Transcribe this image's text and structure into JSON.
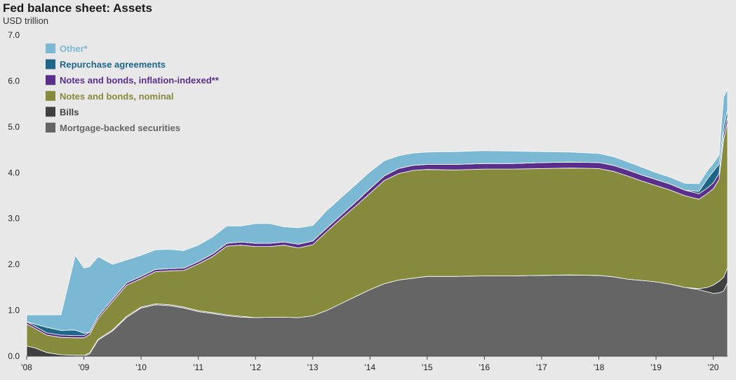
{
  "chart_data": {
    "type": "area",
    "title": "Fed balance sheet: Assets",
    "subtitle": "USD trillion",
    "stacked": true,
    "ylim": [
      0,
      7
    ],
    "yticks": [
      "0.0",
      "1.0",
      "2.0",
      "3.0",
      "4.0",
      "5.0",
      "6.0",
      "7.0"
    ],
    "xticks": [
      {
        "label": "'08",
        "x": 2008.0
      },
      {
        "label": "'09",
        "x": 2009.0
      },
      {
        "label": "'10",
        "x": 2010.0
      },
      {
        "label": "'11",
        "x": 2011.0
      },
      {
        "label": "'12",
        "x": 2012.0
      },
      {
        "label": "'13",
        "x": 2013.0
      },
      {
        "label": "'14",
        "x": 2014.0
      },
      {
        "label": "'15",
        "x": 2015.0
      },
      {
        "label": "'16",
        "x": 2016.0
      },
      {
        "label": "'17",
        "x": 2017.0
      },
      {
        "label": "'18",
        "x": 2018.0
      },
      {
        "label": "'19",
        "x": 2019.0
      },
      {
        "label": "'20",
        "x": 2020.0
      }
    ],
    "xlim": [
      2008.0,
      2020.25
    ],
    "x": [
      2008.0,
      2008.15,
      2008.35,
      2008.6,
      2008.85,
      2009.0,
      2009.1,
      2009.25,
      2009.5,
      2009.75,
      2010.0,
      2010.25,
      2010.5,
      2010.75,
      2011.0,
      2011.25,
      2011.5,
      2011.75,
      2012.0,
      2012.25,
      2012.5,
      2012.75,
      2013.0,
      2013.25,
      2013.5,
      2013.75,
      2014.0,
      2014.25,
      2014.5,
      2014.75,
      2015.0,
      2015.5,
      2016.0,
      2016.5,
      2017.0,
      2017.5,
      2018.0,
      2018.25,
      2018.5,
      2018.75,
      2019.0,
      2019.25,
      2019.5,
      2019.75,
      2019.9,
      2020.0,
      2020.1,
      2020.18,
      2020.25
    ],
    "series": [
      {
        "name": "Mortgage-backed securities",
        "color": "#656565",
        "values": [
          0,
          0,
          0,
          0,
          0,
          0,
          0.05,
          0.35,
          0.55,
          0.85,
          1.05,
          1.12,
          1.1,
          1.05,
          0.97,
          0.93,
          0.88,
          0.85,
          0.84,
          0.85,
          0.85,
          0.84,
          0.88,
          1.0,
          1.15,
          1.3,
          1.45,
          1.58,
          1.66,
          1.7,
          1.74,
          1.74,
          1.75,
          1.75,
          1.76,
          1.77,
          1.76,
          1.73,
          1.68,
          1.65,
          1.62,
          1.57,
          1.5,
          1.45,
          1.4,
          1.37,
          1.38,
          1.42,
          1.6
        ]
      },
      {
        "name": "Bills",
        "color": "#404040",
        "values": [
          0.22,
          0.18,
          0.08,
          0.03,
          0.02,
          0.02,
          0.02,
          0.02,
          0.02,
          0.02,
          0.02,
          0.02,
          0.02,
          0.02,
          0.02,
          0.02,
          0.02,
          0.02,
          0,
          0,
          0,
          0,
          0,
          0,
          0,
          0,
          0,
          0,
          0,
          0,
          0,
          0,
          0,
          0,
          0,
          0,
          0,
          0,
          0,
          0,
          0,
          0,
          0,
          0.02,
          0.1,
          0.18,
          0.25,
          0.3,
          0.33
        ]
      },
      {
        "name": "Notes and bonds, nominal",
        "color": "#868a3c",
        "values": [
          0.48,
          0.42,
          0.38,
          0.38,
          0.38,
          0.38,
          0.4,
          0.45,
          0.62,
          0.68,
          0.62,
          0.7,
          0.74,
          0.8,
          1.02,
          1.22,
          1.5,
          1.55,
          1.55,
          1.54,
          1.57,
          1.52,
          1.55,
          1.72,
          1.85,
          1.97,
          2.1,
          2.25,
          2.32,
          2.35,
          2.33,
          2.32,
          2.33,
          2.33,
          2.33,
          2.33,
          2.33,
          2.3,
          2.25,
          2.17,
          2.1,
          2.05,
          2.0,
          1.95,
          2.05,
          2.1,
          2.22,
          3.0,
          3.15
        ]
      },
      {
        "name": "Notes and bonds, inflation-indexed**",
        "color": "#5a2f8c",
        "values": [
          0.05,
          0.05,
          0.05,
          0.05,
          0.05,
          0.05,
          0.05,
          0.05,
          0.05,
          0.05,
          0.05,
          0.05,
          0.05,
          0.05,
          0.05,
          0.06,
          0.06,
          0.07,
          0.07,
          0.07,
          0.07,
          0.08,
          0.08,
          0.08,
          0.08,
          0.09,
          0.1,
          0.1,
          0.11,
          0.11,
          0.11,
          0.12,
          0.12,
          0.12,
          0.13,
          0.13,
          0.13,
          0.13,
          0.13,
          0.13,
          0.13,
          0.13,
          0.12,
          0.12,
          0.12,
          0.13,
          0.13,
          0.13,
          0.14
        ]
      },
      {
        "name": "Repurchase agreements",
        "color": "#1d6689",
        "values": [
          0.0,
          0.05,
          0.12,
          0.1,
          0.12,
          0.05,
          0.0,
          0.0,
          0.0,
          0.0,
          0.0,
          0.0,
          0.0,
          0.0,
          0.0,
          0.0,
          0.0,
          0.0,
          0.0,
          0.0,
          0.0,
          0.0,
          0.0,
          0.0,
          0.0,
          0.0,
          0.0,
          0.0,
          0.0,
          0.0,
          0.0,
          0.0,
          0.0,
          0.0,
          0.0,
          0.0,
          0.0,
          0.0,
          0.0,
          0.0,
          0.0,
          0.0,
          0.0,
          0.05,
          0.2,
          0.25,
          0.2,
          0.15,
          0.15
        ]
      },
      {
        "name": "Other*",
        "color": "#7ab8d4",
        "values": [
          0.15,
          0.2,
          0.27,
          0.34,
          1.63,
          1.42,
          1.43,
          1.3,
          0.76,
          0.5,
          0.46,
          0.43,
          0.42,
          0.38,
          0.36,
          0.37,
          0.38,
          0.35,
          0.43,
          0.43,
          0.33,
          0.36,
          0.34,
          0.38,
          0.38,
          0.38,
          0.37,
          0.33,
          0.28,
          0.27,
          0.27,
          0.28,
          0.28,
          0.27,
          0.24,
          0.22,
          0.2,
          0.19,
          0.18,
          0.17,
          0.15,
          0.15,
          0.15,
          0.17,
          0.18,
          0.17,
          0.2,
          0.65,
          0.45
        ]
      }
    ],
    "legend_position": "top-left",
    "legend_order": [
      "Other*",
      "Repurchase agreements",
      "Notes and bonds, inflation-indexed**",
      "Notes and bonds, nominal",
      "Bills",
      "Mortgage-backed securities"
    ],
    "legend_text_colors": {
      "Other*": "#7ab8d4",
      "Repurchase agreements": "#1d6689",
      "Notes and bonds, inflation-indexed**": "#5a2f8c",
      "Notes and bonds, nominal": "#868a3c",
      "Bills": "#404040",
      "Mortgage-backed securities": "#656565"
    },
    "grid": false
  }
}
